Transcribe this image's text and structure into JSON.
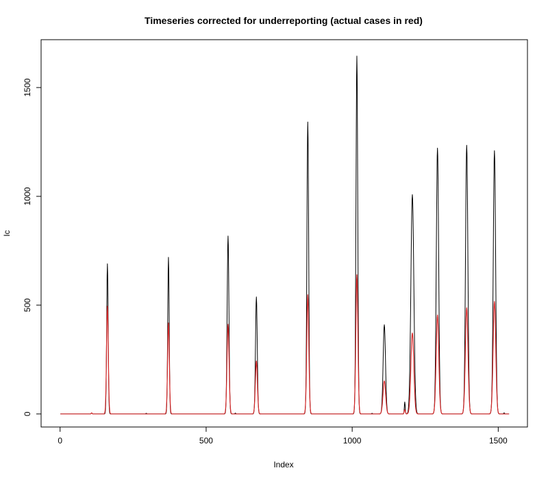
{
  "chart_data": {
    "type": "line",
    "title": "Timeseries corrected for underreporting (actual cases in red)",
    "xlabel": "Index",
    "ylabel": "Ic",
    "xlim": [
      -65,
      1600
    ],
    "ylim": [
      -60,
      1720
    ],
    "x_ticks": [
      0,
      500,
      1000,
      1500
    ],
    "y_ticks": [
      0,
      500,
      1000,
      1500
    ],
    "x_tick_labels": [
      "0",
      "500",
      "1000",
      "1500"
    ],
    "y_tick_labels": [
      "0",
      "500",
      "1000",
      "1500"
    ],
    "grid": false,
    "legend": "none",
    "n_points": 1537,
    "series": [
      {
        "color": "#000000",
        "peaks": [
          {
            "x": 108,
            "y": 5,
            "w": 1.5
          },
          {
            "x": 162,
            "y": 690,
            "w": 2.5
          },
          {
            "x": 295,
            "y": 3,
            "w": 1.5
          },
          {
            "x": 371,
            "y": 720,
            "w": 2.5
          },
          {
            "x": 575,
            "y": 818,
            "w": 3
          },
          {
            "x": 600,
            "y": 4,
            "w": 1.5
          },
          {
            "x": 672,
            "y": 538,
            "w": 3
          },
          {
            "x": 848,
            "y": 1342,
            "w": 3
          },
          {
            "x": 1016,
            "y": 1645,
            "w": 3
          },
          {
            "x": 1068,
            "y": 3,
            "w": 1.5
          },
          {
            "x": 1110,
            "y": 410,
            "w": 4
          },
          {
            "x": 1180,
            "y": 55,
            "w": 1.5
          },
          {
            "x": 1206,
            "y": 1008,
            "w": 5
          },
          {
            "x": 1292,
            "y": 1222,
            "w": 4
          },
          {
            "x": 1392,
            "y": 1235,
            "w": 4
          },
          {
            "x": 1487,
            "y": 1210,
            "w": 4
          },
          {
            "x": 1520,
            "y": 5,
            "w": 1.5
          }
        ]
      },
      {
        "color": "#d62728",
        "peaks": [
          {
            "x": 108,
            "y": 5,
            "w": 1.5
          },
          {
            "x": 162,
            "y": 495,
            "w": 3
          },
          {
            "x": 371,
            "y": 418,
            "w": 3
          },
          {
            "x": 575,
            "y": 412,
            "w": 3.5
          },
          {
            "x": 672,
            "y": 243,
            "w": 3.5
          },
          {
            "x": 848,
            "y": 548,
            "w": 3.5
          },
          {
            "x": 1016,
            "y": 640,
            "w": 3.5
          },
          {
            "x": 1110,
            "y": 152,
            "w": 4.5
          },
          {
            "x": 1180,
            "y": 20,
            "w": 2
          },
          {
            "x": 1206,
            "y": 372,
            "w": 5
          },
          {
            "x": 1292,
            "y": 455,
            "w": 4.5
          },
          {
            "x": 1392,
            "y": 488,
            "w": 4.5
          },
          {
            "x": 1487,
            "y": 517,
            "w": 4.5
          }
        ]
      }
    ]
  }
}
